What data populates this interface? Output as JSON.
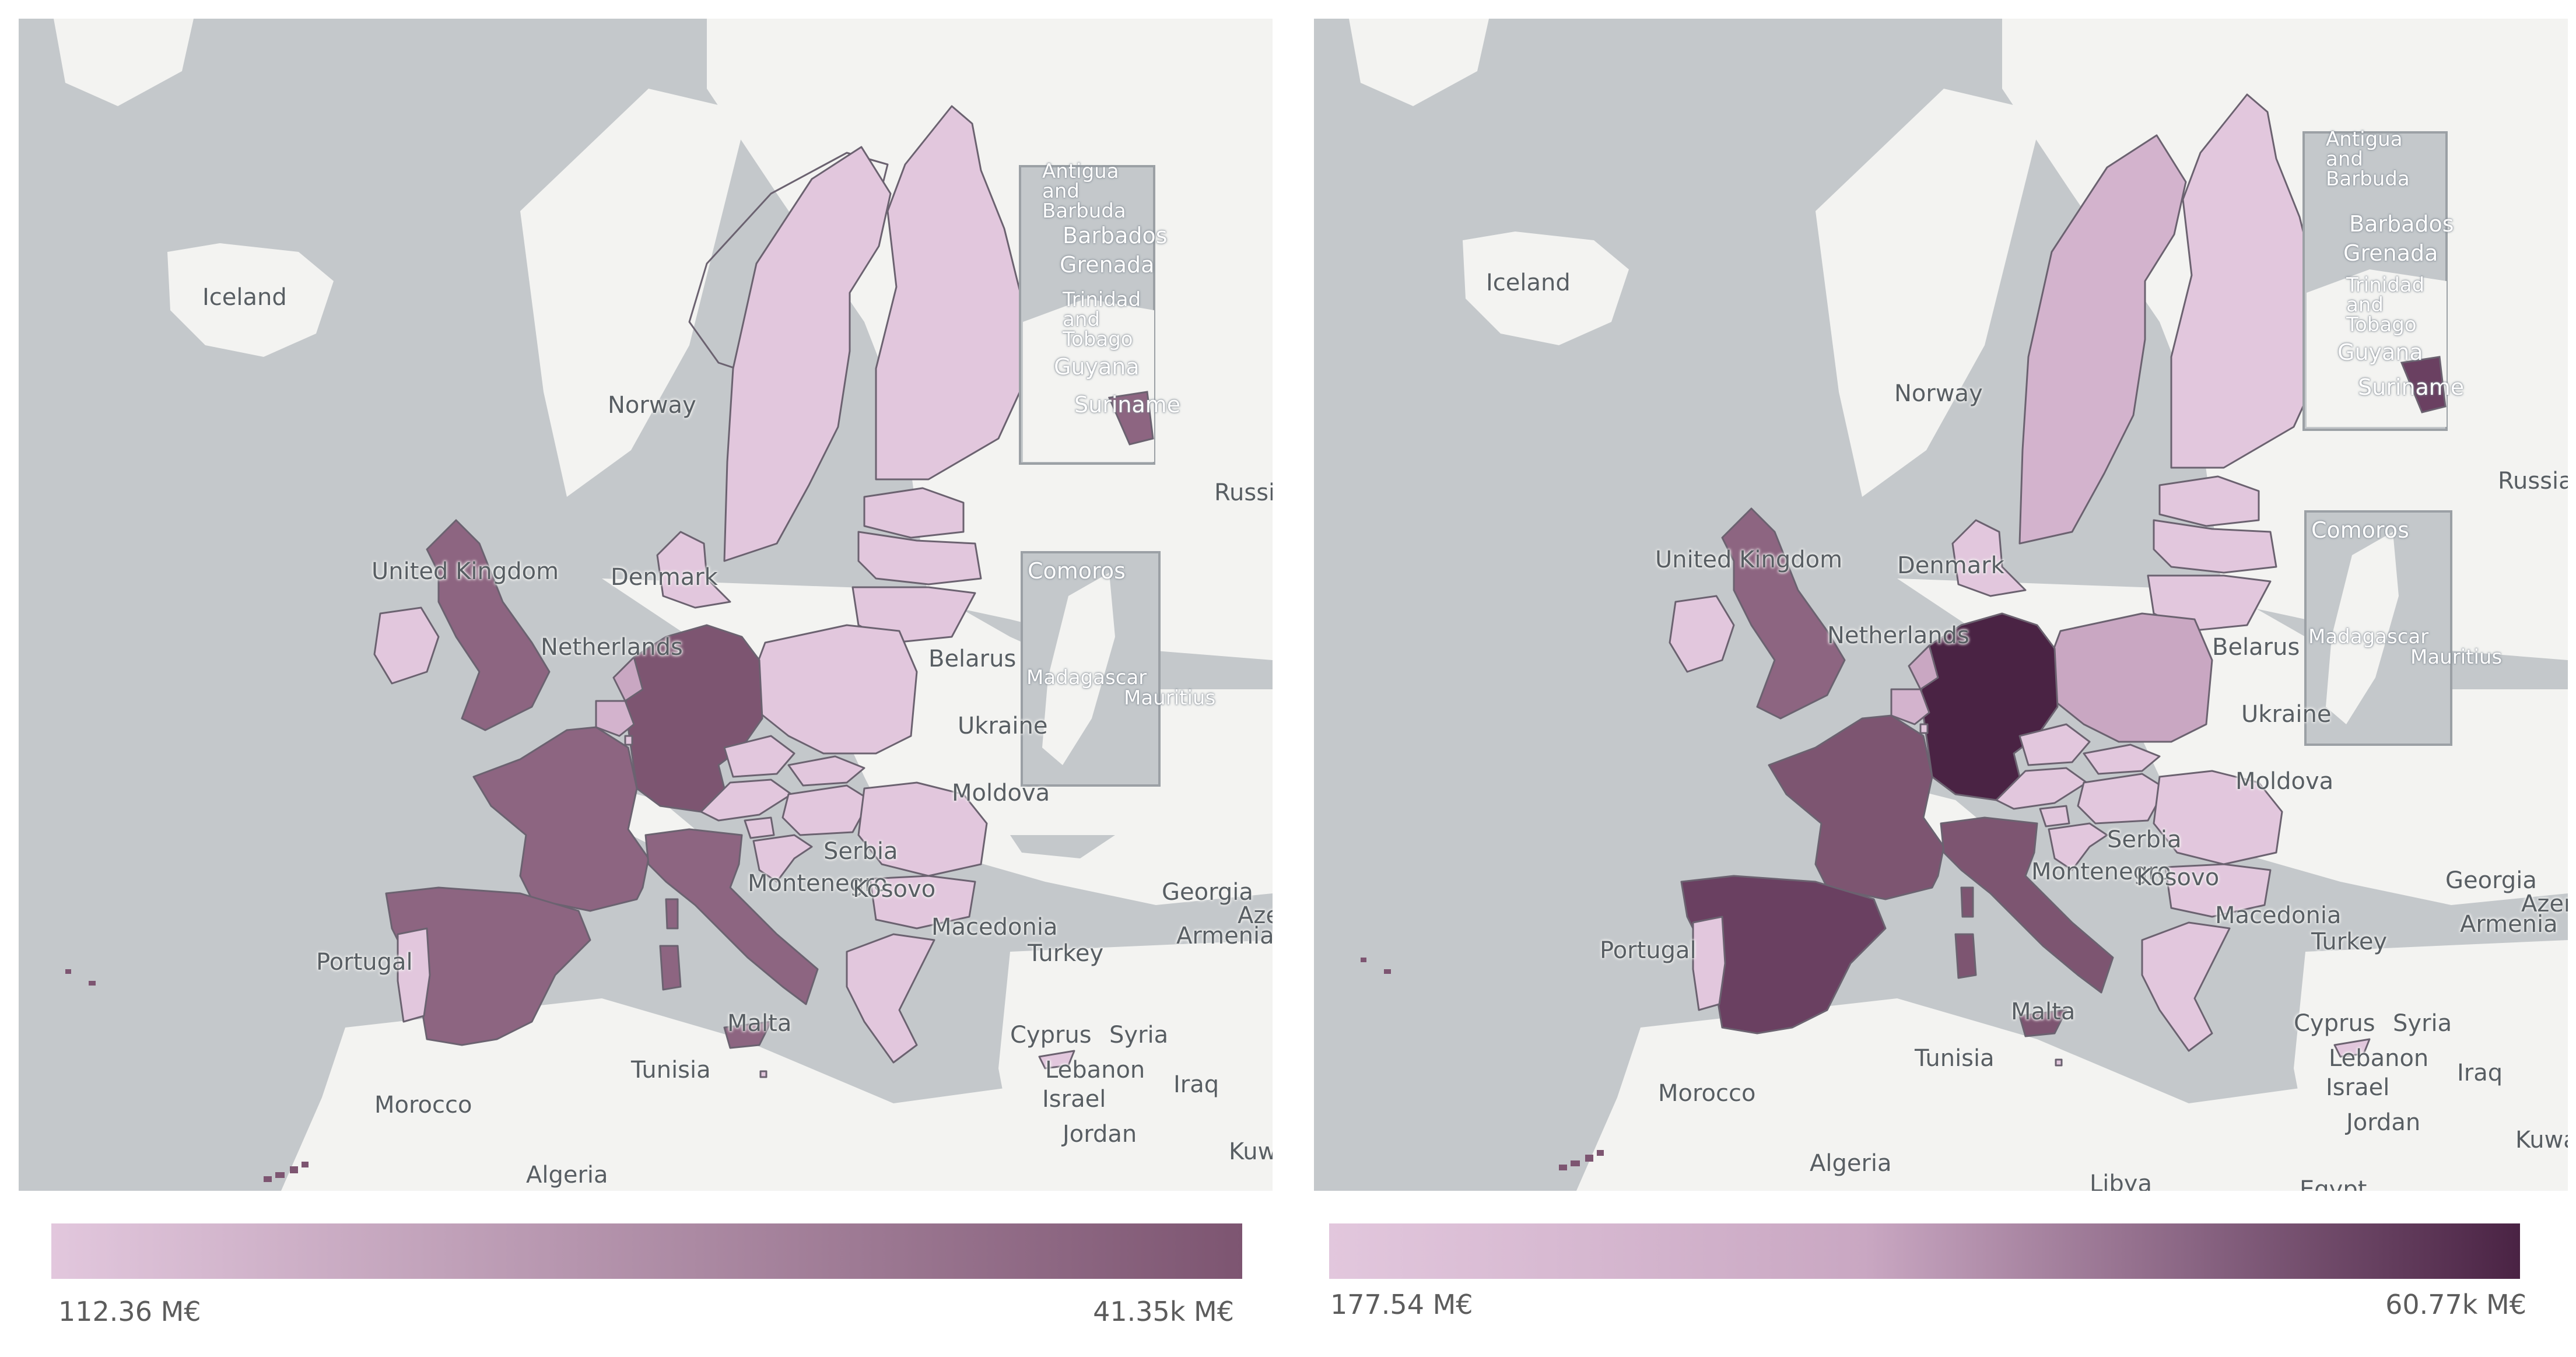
{
  "colors": {
    "sea": "#c4c8cb",
    "land": "#f3f3f1",
    "border": "#6b6270",
    "low": "#e2c7dd",
    "mid_pale": "#d3b3cd",
    "mid_rose": "#c9a7c2",
    "mid": "#8d6581",
    "mid_dark": "#7d5571",
    "high_left": "#7a526f",
    "high_right": "#4a2344",
    "spain_right": "#6a4061"
  },
  "maps": [
    {
      "legend": {
        "min_label": "112.36 M€",
        "max_label": "41.35k M€",
        "max_color": "#7d5571"
      },
      "places": {
        "iceland": "Iceland",
        "norway": "Norway",
        "uk": "United Kingdom",
        "denmark": "Denmark",
        "netherlands": "Netherlands",
        "belarus": "Belarus",
        "ukraine": "Ukraine",
        "moldova": "Moldova",
        "russia": "Russia",
        "georgia": "Georgia",
        "azerbaijan": "Azerbaijan",
        "armenia": "Armenia",
        "macedonia": "Macedonia",
        "turkey": "Turkey",
        "portugal": "Portugal",
        "serbia": "Serbia",
        "montenegro": "Montenegro",
        "kosovo": "Kosovo",
        "malta": "Malta",
        "cyprus": "Cyprus",
        "syria": "Syria",
        "lebanon": "Lebanon",
        "israel": "Israel",
        "iraq": "Iraq",
        "jordan": "Jordan",
        "kuwait": "Kuwait",
        "tunisia": "Tunisia",
        "morocco": "Morocco",
        "algeria": "Algeria"
      },
      "inset_caribbean": {
        "antigua": "Antigua and Barbuda",
        "barbados": "Barbados",
        "grenada": "Grenada",
        "trinidad": "Trinidad and Tobago",
        "guyana": "Guyana",
        "suriname": "Suriname"
      },
      "inset_indian": {
        "comoros": "Comoros",
        "madagascar": "Madagascar",
        "mauritius": "Mauritius"
      }
    },
    {
      "legend": {
        "min_label": "177.54 M€",
        "max_label": "60.77k M€",
        "max_color": "#4a2344"
      },
      "places": {
        "iceland": "Iceland",
        "norway": "Norway",
        "uk": "United Kingdom",
        "denmark": "Denmark",
        "netherlands": "Netherlands",
        "belarus": "Belarus",
        "ukraine": "Ukraine",
        "moldova": "Moldova",
        "russia": "Russia",
        "georgia": "Georgia",
        "azerbaijan": "Azerbaijan",
        "armenia": "Armenia",
        "macedonia": "Macedonia",
        "turkey": "Turkey",
        "portugal": "Portugal",
        "serbia": "Serbia",
        "montenegro": "Montenegro",
        "kosovo": "Kosovo",
        "malta": "Malta",
        "cyprus": "Cyprus",
        "syria": "Syria",
        "lebanon": "Lebanon",
        "israel": "Israel",
        "iraq": "Iraq",
        "jordan": "Jordan",
        "kuwait": "Kuwait",
        "tunisia": "Tunisia",
        "morocco": "Morocco",
        "algeria": "Algeria",
        "libya": "Libya",
        "egypt": "Egypt"
      },
      "inset_caribbean": {
        "antigua": "Antigua and Barbuda",
        "barbados": "Barbados",
        "grenada": "Grenada",
        "trinidad": "Trinidad and Tobago",
        "guyana": "Guyana",
        "suriname": "Suriname"
      },
      "inset_indian": {
        "comoros": "Comoros",
        "madagascar": "Madagascar",
        "mauritius": "Mauritius"
      }
    }
  ]
}
